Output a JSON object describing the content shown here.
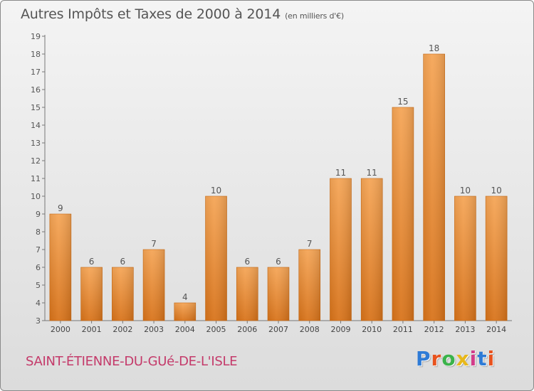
{
  "header": {
    "title": "Autres Impôts et Taxes de 2000 à 2014",
    "subtitle": "(en milliers d'€)"
  },
  "footer": {
    "commune": "SAINT-ÉTIENNE-DU-GUé-DE-L'ISLE",
    "logo_letters": [
      "P",
      "r",
      "o",
      "x",
      "i",
      "t",
      "i"
    ],
    "logo_colors": [
      "#2e7bd6",
      "#e8531e",
      "#3ab34a",
      "#e8b81a",
      "#d23c8a",
      "#2e7bd6",
      "#e8531e"
    ]
  },
  "chart_data": {
    "type": "bar",
    "categories": [
      "2000",
      "2001",
      "2002",
      "2003",
      "2004",
      "2005",
      "2006",
      "2007",
      "2008",
      "2009",
      "2010",
      "2011",
      "2012",
      "2013",
      "2014"
    ],
    "values": [
      9,
      6,
      6,
      7,
      4,
      10,
      6,
      6,
      7,
      11,
      11,
      15,
      18,
      10,
      10
    ],
    "y_ticks": [
      "3",
      "4",
      "5",
      "6",
      "7",
      "8",
      "9",
      "10",
      "11",
      "12",
      "13",
      "14",
      "15",
      "16",
      "17",
      "18",
      "19"
    ],
    "ylim": [
      3,
      19
    ],
    "grid": false,
    "bar_color": "#f0922e"
  }
}
